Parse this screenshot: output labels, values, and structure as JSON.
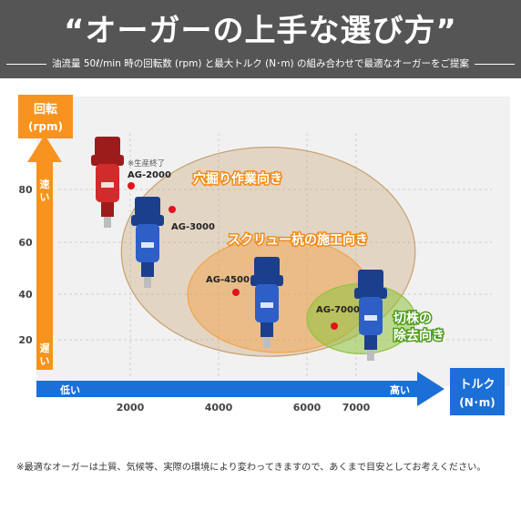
{
  "header": {
    "title": "“オーガーの上手な選び方”",
    "subtitle": "油流量 50ℓ/min 時の回転数 (rpm) と最大トルク (N･m) の組み合わせで最適なオーガーをご提案"
  },
  "colors": {
    "header_bg": "#555555",
    "y_arrow": "#f7931e",
    "x_arrow": "#1c6fd6",
    "general_zone": "#c8a070",
    "screw_zone": "#f2a34c",
    "stump_zone": "#8fc33c",
    "label_orange": "#f08c1a",
    "label_green": "#4f9d1b",
    "point_red": "#e0141e"
  },
  "chart_data": {
    "type": "scatter",
    "ylabel": "回転\n(rpm)",
    "xlabel": "トルク\n(N･m)",
    "y_ticks": [
      20,
      40,
      60,
      80
    ],
    "x_ticks": [
      2000,
      4000,
      6000,
      7000
    ],
    "y_fast": "速い",
    "y_slow": "遅い",
    "x_low": "低い",
    "x_high": "高い",
    "points": [
      {
        "name": "AG-2000",
        "torque": 2000,
        "rpm": 80,
        "note": "※生産終了",
        "color": "red"
      },
      {
        "name": "AG-3000",
        "torque": 3000,
        "rpm": 75
      },
      {
        "name": "AG-4500",
        "torque": 4500,
        "rpm": 41
      },
      {
        "name": "AG-7000",
        "torque": 7000,
        "rpm": 32
      }
    ],
    "zones": [
      {
        "label": "穴掘り作業向き",
        "x": [
          1800,
          8200
        ],
        "y": [
          7,
          96
        ]
      },
      {
        "label": "スクリュー杭の施工向き",
        "x": [
          3300,
          7300
        ],
        "y": [
          10,
          62
        ]
      },
      {
        "label": "切株の\n除去向き",
        "x": [
          6000,
          8200
        ],
        "y": [
          9,
          44
        ]
      }
    ]
  },
  "footnote": "※最適なオーガーは土質、気候等、実際の環境により変わってきますので、あくまで目安としてお考えください。"
}
